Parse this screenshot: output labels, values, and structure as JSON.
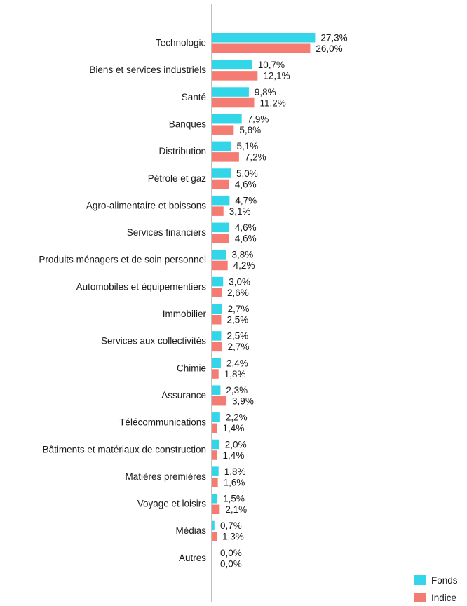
{
  "chart_data": {
    "type": "bar",
    "orientation": "horizontal",
    "categories": [
      "Technologie",
      "Biens et services industriels",
      "Santé",
      "Banques",
      "Distribution",
      "Pétrole et gaz",
      "Agro-alimentaire et boissons",
      "Services financiers",
      "Produits ménagers et de soin personnel",
      "Automobiles et équipementiers",
      "Immobilier",
      "Services aux collectivités",
      "Chimie",
      "Assurance",
      "Télécommunications",
      "Bâtiments et matériaux de construction",
      "Matières premières",
      "Voyage et loisirs",
      "Médias",
      "Autres"
    ],
    "series": [
      {
        "name": "Fonds",
        "color": "#33D6E8",
        "values": [
          27.3,
          10.7,
          9.8,
          7.9,
          5.1,
          5.0,
          4.7,
          4.6,
          3.8,
          3.0,
          2.7,
          2.5,
          2.4,
          2.3,
          2.2,
          2.0,
          1.8,
          1.5,
          0.7,
          0.0
        ],
        "labels": [
          "27,3%",
          "10,7%",
          "9,8%",
          "7,9%",
          "5,1%",
          "5,0%",
          "4,7%",
          "4,6%",
          "3,8%",
          "3,0%",
          "2,7%",
          "2,5%",
          "2,4%",
          "2,3%",
          "2,2%",
          "2,0%",
          "1,8%",
          "1,5%",
          "0,7%",
          "0,0%"
        ]
      },
      {
        "name": "Indice",
        "color": "#F47C72",
        "values": [
          26.0,
          12.1,
          11.2,
          5.8,
          7.2,
          4.6,
          3.1,
          4.6,
          4.2,
          2.6,
          2.5,
          2.7,
          1.8,
          3.9,
          1.4,
          1.4,
          1.6,
          2.1,
          1.3,
          0.0
        ],
        "labels": [
          "26,0%",
          "12,1%",
          "11,2%",
          "5,8%",
          "7,2%",
          "4,6%",
          "3,1%",
          "4,6%",
          "4,2%",
          "2,6%",
          "2,5%",
          "2,7%",
          "1,8%",
          "3,9%",
          "1,4%",
          "1,4%",
          "1,6%",
          "2,1%",
          "1,3%",
          "0,0%"
        ]
      }
    ],
    "xlim": [
      0,
      30
    ],
    "grid": false,
    "legend_position": "bottom-right",
    "axis_color": "#BFBFBF"
  }
}
